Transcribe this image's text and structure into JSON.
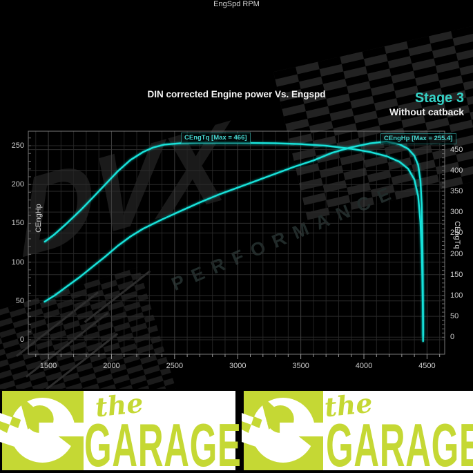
{
  "title": "DIN corrected Engine power Vs. Engspd",
  "stage": {
    "label": "Stage 3",
    "sublabel": "Without catback"
  },
  "watermark": {
    "brand": "DVX",
    "performance": "PERFORMANCE"
  },
  "banner": {
    "script_word": "the",
    "main_word": "GARAGE",
    "green": "#c5d834"
  },
  "chart_data": {
    "type": "line",
    "title": "DIN corrected Engine power Vs. Engspd",
    "xlabel": "EngSpd RPM",
    "line_color": "#19e2da",
    "grid": true,
    "x_axis": {
      "ticks": [
        1500,
        2000,
        2500,
        3000,
        3500,
        4000,
        4500
      ],
      "minor_step": 100,
      "range": [
        1341,
        4640
      ]
    },
    "left_axis": {
      "label": "CEngHp",
      "ticks": [
        0,
        50,
        100,
        150,
        200,
        250
      ],
      "minor_step": 10,
      "range": [
        -18.7,
        268.7
      ]
    },
    "right_axis": {
      "label": "CEngTq",
      "ticks": [
        0,
        50,
        100,
        150,
        200,
        250,
        300,
        350,
        400,
        450
      ],
      "minor_step": 10,
      "range": [
        -40.9,
        494
      ]
    },
    "series": [
      {
        "name": "CEngTq",
        "axis": "right",
        "label": "CEngTq [Max = 466]",
        "max": 466,
        "points": [
          [
            1472,
            229
          ],
          [
            1550,
            247
          ],
          [
            1650,
            274
          ],
          [
            1750,
            303
          ],
          [
            1850,
            334
          ],
          [
            1950,
            366
          ],
          [
            2050,
            398
          ],
          [
            2150,
            425
          ],
          [
            2250,
            444
          ],
          [
            2330,
            455
          ],
          [
            2420,
            462
          ],
          [
            2550,
            465
          ],
          [
            2700,
            466
          ],
          [
            3000,
            466
          ],
          [
            3300,
            465
          ],
          [
            3500,
            463
          ],
          [
            3700,
            459
          ],
          [
            3900,
            452
          ],
          [
            4050,
            444
          ],
          [
            4180,
            434
          ],
          [
            4280,
            421
          ],
          [
            4350,
            404
          ],
          [
            4400,
            378
          ],
          [
            4430,
            338
          ],
          [
            4448,
            275
          ],
          [
            4458,
            205
          ],
          [
            4463,
            145
          ],
          [
            4466,
            85
          ],
          [
            4468,
            35
          ],
          [
            4469,
            3
          ]
        ]
      },
      {
        "name": "CEngHp",
        "axis": "left",
        "label": "CEngHp [Max = 255.4]",
        "max": 255.4,
        "points": [
          [
            1470,
            49
          ],
          [
            1550,
            57
          ],
          [
            1650,
            69
          ],
          [
            1750,
            81
          ],
          [
            1850,
            94
          ],
          [
            1950,
            107
          ],
          [
            2050,
            121
          ],
          [
            2150,
            133
          ],
          [
            2250,
            143
          ],
          [
            2400,
            155
          ],
          [
            2550,
            166
          ],
          [
            2700,
            177
          ],
          [
            2850,
            187
          ],
          [
            3000,
            196
          ],
          [
            3150,
            205
          ],
          [
            3300,
            214
          ],
          [
            3450,
            223
          ],
          [
            3600,
            231
          ],
          [
            3750,
            241
          ],
          [
            3900,
            248
          ],
          [
            4050,
            253
          ],
          [
            4180,
            255.4
          ],
          [
            4280,
            252
          ],
          [
            4350,
            246
          ],
          [
            4400,
            237
          ],
          [
            4430,
            225
          ],
          [
            4448,
            205
          ],
          [
            4458,
            175
          ],
          [
            4463,
            135
          ],
          [
            4466,
            90
          ],
          [
            4468,
            40
          ],
          [
            4469,
            -2
          ]
        ]
      }
    ]
  }
}
